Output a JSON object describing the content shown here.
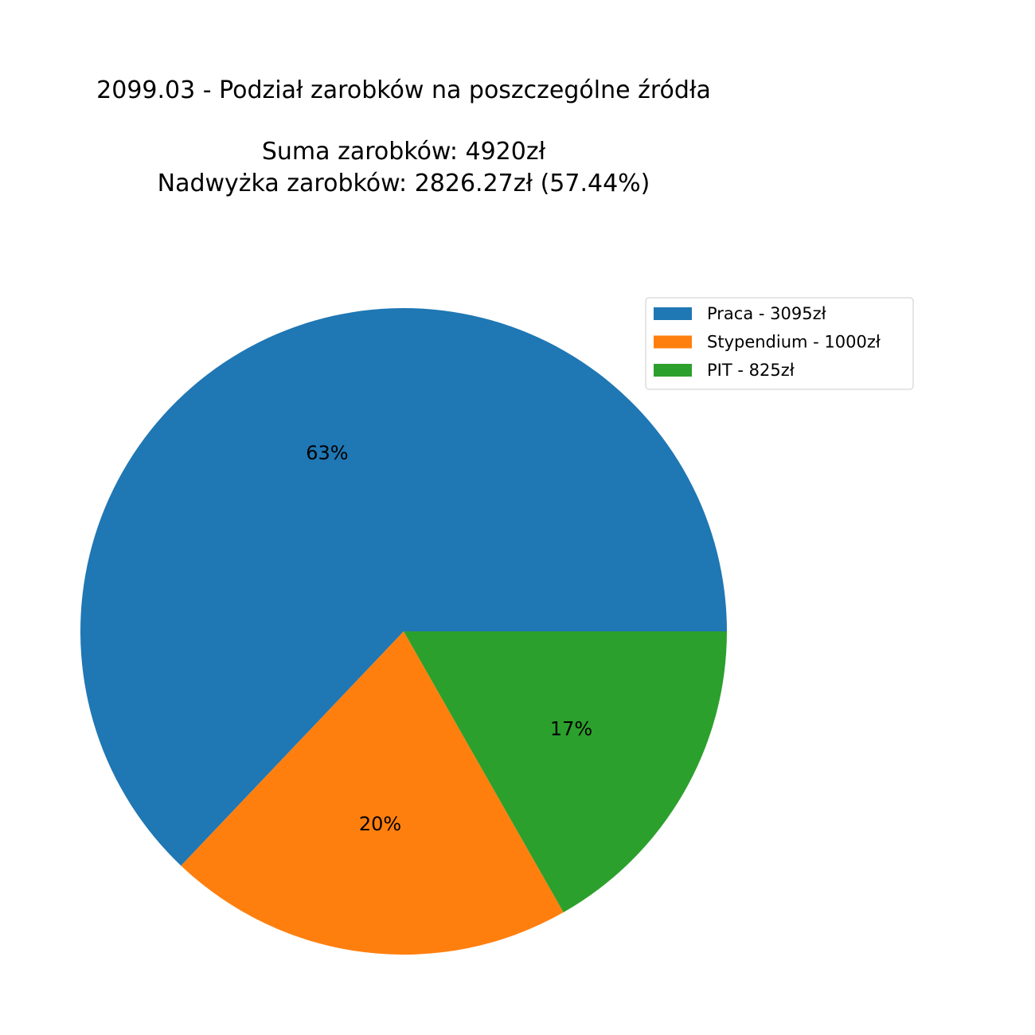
{
  "chart_data": {
    "type": "pie",
    "title_lines": [
      "2099.03 - Podział zarobków na poszczególne źródła",
      "",
      "Suma zarobków: 4920zł",
      "Nadwyżka zarobków: 2826.27zł (57.44%)"
    ],
    "slices": [
      {
        "legend": "Praca - 3095zł",
        "value": 3095,
        "pct_label": "63%",
        "color": "#1f77b4"
      },
      {
        "legend": "Stypendium - 1000zł",
        "value": 1000,
        "pct_label": "20%",
        "color": "#ff7f0e"
      },
      {
        "legend": "PIT - 825zł",
        "value": 825,
        "pct_label": "17%",
        "color": "#2ca02c"
      }
    ],
    "start_angle_deg": 0,
    "direction": "counterclockwise",
    "legend_position": "top-right"
  }
}
